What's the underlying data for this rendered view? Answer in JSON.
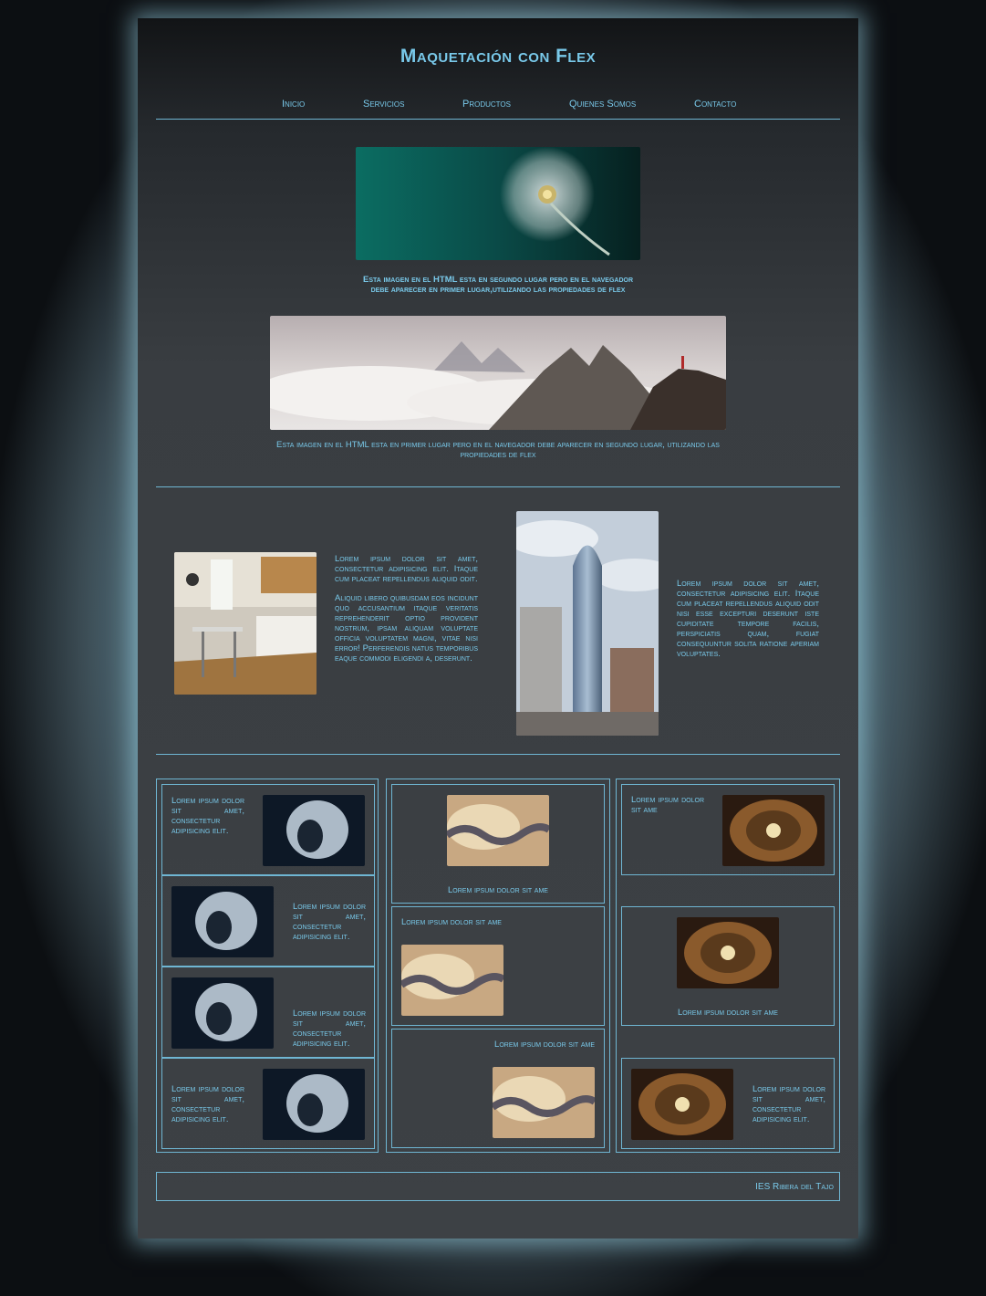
{
  "header": {
    "title": "Maquetación con Flex"
  },
  "nav": {
    "items": [
      "Inicio",
      "Servicios",
      "Productos",
      "Quienes Somos",
      "Contacto"
    ]
  },
  "hero": {
    "caption_dandelion": "Esta imagen en el HTML esta en segundo lugar pero en el navegador debe aparecer en primer lugar,utilizando las propiedades de flex",
    "caption_mountain": "Esta imagen en el HTML esta en primer lugar pero en el navegador debe aparecer en segundo lugar, utilizando las propiedades de flex"
  },
  "articles": {
    "left_p1": "Lorem ipsum dolor sit amet, consectetur adipisicing elit. Itaque cum placeat repellendus aliquid odit.",
    "left_p2": "Aliquid libero quibusdam eos incidunt quo accusantium itaque veritatis reprehenderit optio provident nostrum, ipsam aliquam voluptate officia voluptatem magni, vitae nisi error! Perferendis natus temporibus eaque commodi eligendi a, deserunt.",
    "right_p1": "Lorem ipsum dolor sit amet, consectetur adipisicing elit. Itaque cum placeat repellendus aliquid odit nisi esse excepturi deserunt iste cupiditate tempore facilis, perspiciatis quam, fugiat consequuntur solita ratione aperiam voluptates."
  },
  "gallery": {
    "col1": [
      "Lorem ipsum dolor sit amet, consectetur adipisicing elit.",
      "Lorem ipsum dolor sit amet, consectetur adipisicing elit.",
      "Lorem ipsum dolor sit amet, consectetur adipisicing elit.",
      "Lorem ipsum dolor sit amet, consectetur adipisicing elit."
    ],
    "col2": [
      "Lorem ipsum dolor sit ame",
      "Lorem ipsum dolor sit ame",
      "Lorem ipsum dolor sit ame"
    ],
    "col3": [
      "Lorem ipsum dolor sit ame",
      "Lorem ipsum dolor sit ame",
      "Lorem ipsum dolor sit amet, consectetur adipisicing elit."
    ]
  },
  "footer": {
    "text": "IES Ribera del Tajo"
  },
  "colors": {
    "accent": "#79c9ea",
    "border": "#6fb6d3",
    "panel": "#3d4145"
  }
}
